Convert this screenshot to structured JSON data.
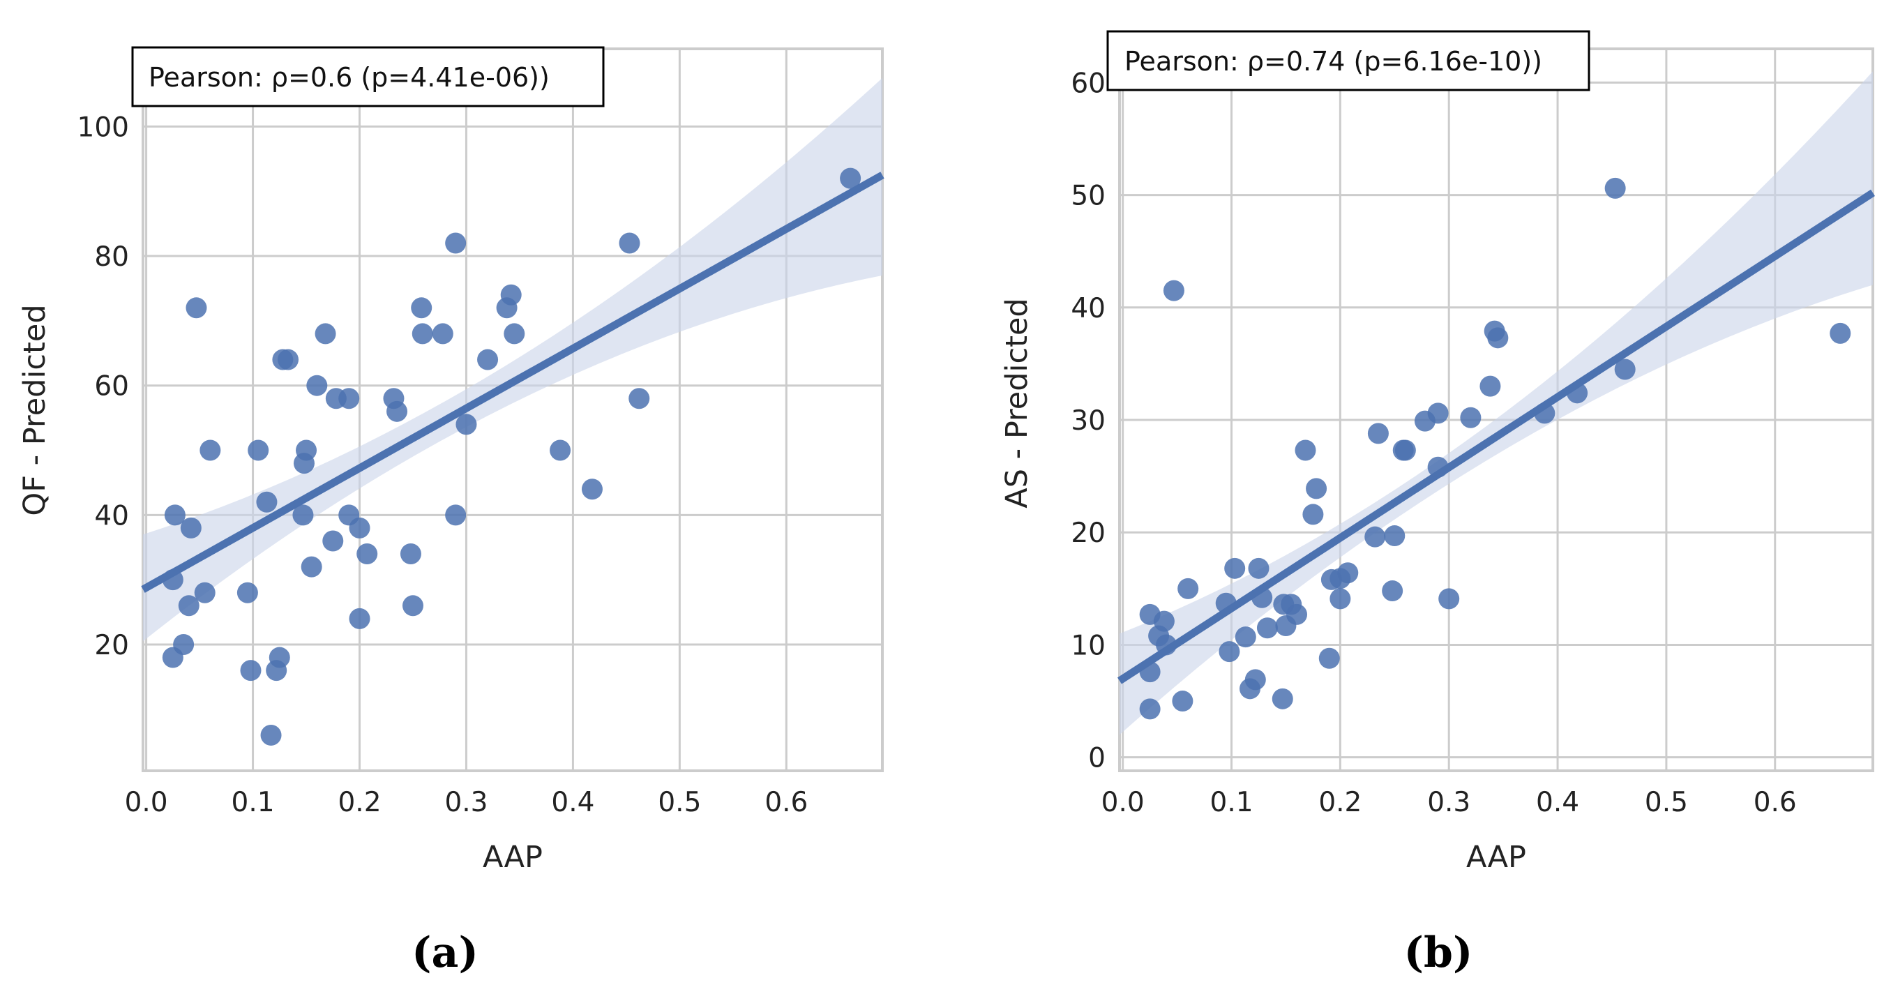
{
  "chart_data": [
    {
      "type": "scatter",
      "panel_label": "(a)",
      "annotation": "Pearson: ρ=0.6 (p=4.41e-06))",
      "xlabel": "AAP",
      "ylabel": "QF - Predicted",
      "xlim": [
        -0.003,
        0.69
      ],
      "ylim": [
        0.5,
        112
      ],
      "xticks": [
        0.0,
        0.1,
        0.2,
        0.3,
        0.4,
        0.5,
        0.6
      ],
      "xtick_labels": [
        "0.0",
        "0.1",
        "0.2",
        "0.3",
        "0.4",
        "0.5",
        "0.6"
      ],
      "yticks": [
        20,
        40,
        60,
        80,
        100
      ],
      "ytick_labels": [
        "20",
        "40",
        "60",
        "80",
        "100"
      ],
      "grid": true,
      "point_color": "#4c72b0",
      "line_color": "#4c72b0",
      "band_color": "#c9d3ea",
      "regression": {
        "x": [
          -0.003,
          0.69
        ],
        "y": [
          28.5,
          92.5
        ],
        "ci_lower": [
          20.5,
          77.0
        ],
        "ci_upper": [
          37.0,
          107.5
        ]
      },
      "points": [
        [
          0.025,
          18
        ],
        [
          0.025,
          30
        ],
        [
          0.027,
          40
        ],
        [
          0.035,
          20
        ],
        [
          0.04,
          26
        ],
        [
          0.042,
          38
        ],
        [
          0.047,
          72
        ],
        [
          0.055,
          28
        ],
        [
          0.06,
          50
        ],
        [
          0.095,
          28
        ],
        [
          0.098,
          16
        ],
        [
          0.105,
          50
        ],
        [
          0.113,
          42
        ],
        [
          0.117,
          6
        ],
        [
          0.122,
          16
        ],
        [
          0.125,
          18
        ],
        [
          0.128,
          64
        ],
        [
          0.133,
          64
        ],
        [
          0.147,
          40
        ],
        [
          0.148,
          48
        ],
        [
          0.15,
          50
        ],
        [
          0.155,
          32
        ],
        [
          0.16,
          60
        ],
        [
          0.168,
          68
        ],
        [
          0.175,
          36
        ],
        [
          0.178,
          58
        ],
        [
          0.19,
          58
        ],
        [
          0.19,
          40
        ],
        [
          0.2,
          38
        ],
        [
          0.2,
          24
        ],
        [
          0.207,
          34
        ],
        [
          0.232,
          58
        ],
        [
          0.235,
          56
        ],
        [
          0.248,
          34
        ],
        [
          0.25,
          26
        ],
        [
          0.258,
          72
        ],
        [
          0.259,
          68
        ],
        [
          0.278,
          68
        ],
        [
          0.29,
          82
        ],
        [
          0.29,
          40
        ],
        [
          0.3,
          54
        ],
        [
          0.32,
          64
        ],
        [
          0.338,
          72
        ],
        [
          0.342,
          74
        ],
        [
          0.345,
          68
        ],
        [
          0.388,
          50
        ],
        [
          0.418,
          44
        ],
        [
          0.453,
          82
        ],
        [
          0.462,
          58
        ],
        [
          0.66,
          92
        ]
      ]
    },
    {
      "type": "scatter",
      "panel_label": "(b)",
      "annotation": "Pearson: ρ=0.74 (p=6.16e-10))",
      "xlabel": "AAP",
      "ylabel": "AS - Predicted",
      "xlim": [
        -0.003,
        0.69
      ],
      "ylim": [
        -1.2,
        63
      ],
      "xticks": [
        0.0,
        0.1,
        0.2,
        0.3,
        0.4,
        0.5,
        0.6
      ],
      "xtick_labels": [
        "0.0",
        "0.1",
        "0.2",
        "0.3",
        "0.4",
        "0.5",
        "0.6"
      ],
      "yticks": [
        0,
        10,
        20,
        30,
        40,
        50,
        60
      ],
      "ytick_labels": [
        "0",
        "10",
        "20",
        "30",
        "40",
        "50",
        "60"
      ],
      "grid": true,
      "point_color": "#4c72b0",
      "line_color": "#4c72b0",
      "band_color": "#c9d3ea",
      "regression": {
        "x": [
          -0.003,
          0.69
        ],
        "y": [
          6.8,
          50.2
        ],
        "ci_lower": [
          2.0,
          42.0
        ],
        "ci_upper": [
          11.0,
          61.0
        ]
      },
      "points": [
        [
          0.025,
          4.3
        ],
        [
          0.025,
          7.6
        ],
        [
          0.025,
          12.7
        ],
        [
          0.033,
          10.8
        ],
        [
          0.038,
          12.1
        ],
        [
          0.04,
          10.0
        ],
        [
          0.047,
          41.5
        ],
        [
          0.055,
          5.0
        ],
        [
          0.06,
          15.0
        ],
        [
          0.095,
          13.7
        ],
        [
          0.098,
          9.4
        ],
        [
          0.103,
          16.8
        ],
        [
          0.113,
          10.7
        ],
        [
          0.117,
          6.1
        ],
        [
          0.122,
          6.9
        ],
        [
          0.125,
          16.8
        ],
        [
          0.128,
          14.2
        ],
        [
          0.133,
          11.5
        ],
        [
          0.147,
          5.2
        ],
        [
          0.148,
          13.6
        ],
        [
          0.15,
          11.7
        ],
        [
          0.155,
          13.6
        ],
        [
          0.16,
          12.7
        ],
        [
          0.168,
          27.3
        ],
        [
          0.175,
          21.6
        ],
        [
          0.178,
          23.9
        ],
        [
          0.19,
          8.8
        ],
        [
          0.192,
          15.8
        ],
        [
          0.2,
          14.1
        ],
        [
          0.2,
          15.9
        ],
        [
          0.207,
          16.4
        ],
        [
          0.232,
          19.6
        ],
        [
          0.235,
          28.8
        ],
        [
          0.248,
          14.8
        ],
        [
          0.25,
          19.7
        ],
        [
          0.258,
          27.3
        ],
        [
          0.26,
          27.3
        ],
        [
          0.278,
          29.9
        ],
        [
          0.29,
          25.8
        ],
        [
          0.29,
          30.6
        ],
        [
          0.3,
          14.1
        ],
        [
          0.32,
          30.2
        ],
        [
          0.338,
          33.0
        ],
        [
          0.342,
          37.9
        ],
        [
          0.345,
          37.3
        ],
        [
          0.388,
          30.6
        ],
        [
          0.418,
          32.4
        ],
        [
          0.453,
          50.6
        ],
        [
          0.462,
          34.5
        ],
        [
          0.66,
          37.7
        ]
      ]
    }
  ]
}
